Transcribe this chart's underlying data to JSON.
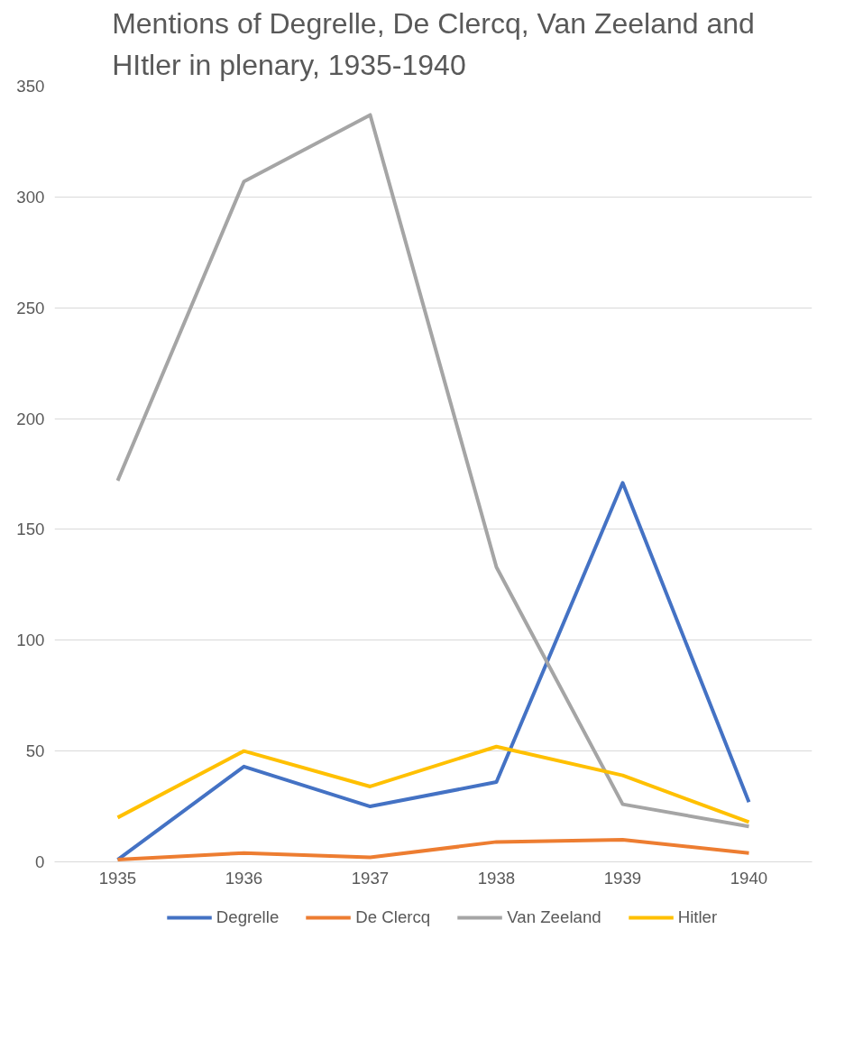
{
  "chart_data": {
    "type": "line",
    "title": "Mentions of Degrelle, De Clercq, Van Zeeland and HItler in plenary, 1935-1940",
    "categories": [
      "1935",
      "1936",
      "1937",
      "1938",
      "1939",
      "1940"
    ],
    "series": [
      {
        "name": "Degrelle",
        "color": "#4472c4",
        "values": [
          1,
          43,
          25,
          36,
          171,
          27
        ]
      },
      {
        "name": "De Clercq",
        "color": "#ed7d31",
        "values": [
          1,
          4,
          2,
          9,
          10,
          4
        ]
      },
      {
        "name": "Van Zeeland",
        "color": "#a5a5a5",
        "values": [
          172,
          307,
          337,
          133,
          26,
          16
        ]
      },
      {
        "name": "Hitler",
        "color": "#ffc000",
        "values": [
          20,
          50,
          34,
          52,
          39,
          18
        ]
      }
    ],
    "ylim": [
      0,
      350
    ],
    "yticks": [
      0,
      50,
      100,
      150,
      200,
      250,
      300,
      350
    ],
    "grid": "y",
    "legend": "bottom",
    "marker": "none",
    "line_style": "solid"
  }
}
